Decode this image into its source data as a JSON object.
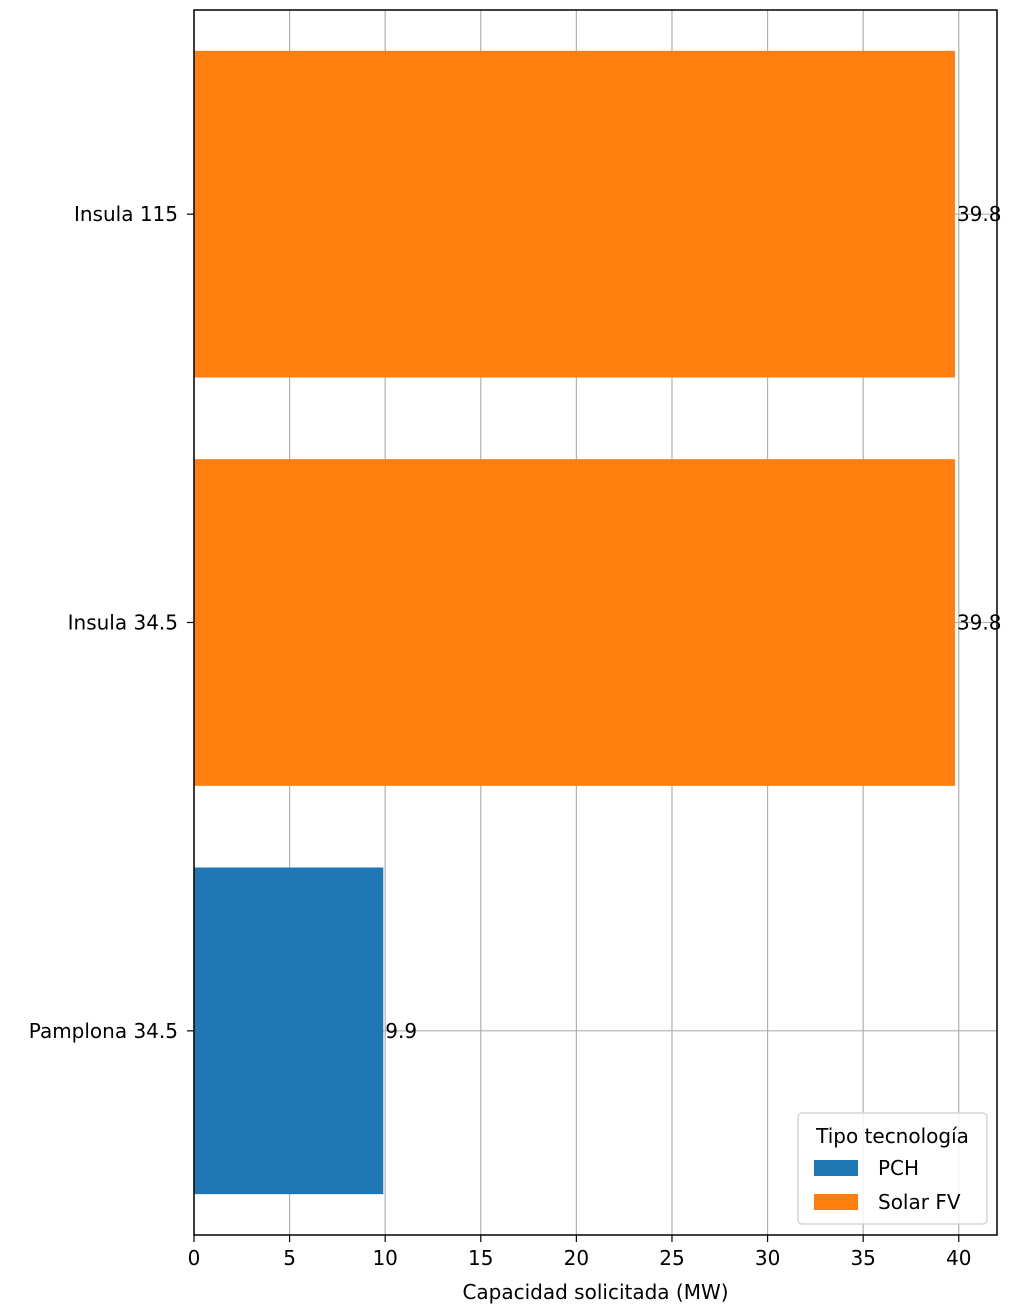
{
  "chart_data": {
    "type": "bar",
    "orientation": "horizontal",
    "categories": [
      "Insula 115",
      "Insula 34.5",
      "Pamplona 34.5"
    ],
    "values": [
      39.8,
      39.8,
      9.9
    ],
    "category_series": [
      "Solar FV",
      "Solar FV",
      "PCH"
    ],
    "data_labels": [
      "39.8",
      "39.8",
      "9.9"
    ],
    "xlabel": "Capacidad solicitada (MW)",
    "ylabel": "",
    "xlim": [
      0,
      42
    ],
    "x_ticks": [
      0,
      5,
      10,
      15,
      20,
      25,
      30,
      35,
      40
    ],
    "x_tick_labels": [
      "0",
      "5",
      "10",
      "15",
      "20",
      "25",
      "30",
      "35",
      "40"
    ],
    "grid": true,
    "legend": {
      "title": "Tipo tecnología",
      "placement": "lower-right",
      "entries": [
        {
          "name": "PCH",
          "color": "#1f77b4"
        },
        {
          "name": "Solar FV",
          "color": "#ff7f0e"
        }
      ]
    }
  }
}
